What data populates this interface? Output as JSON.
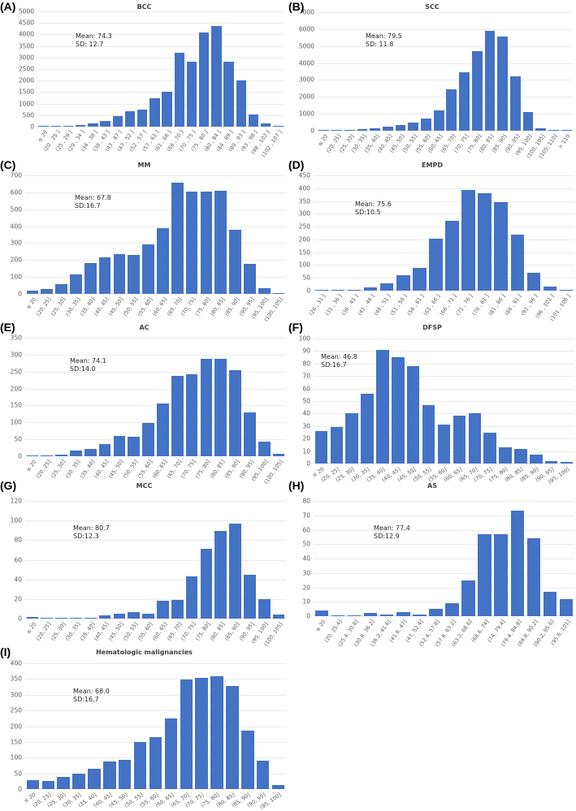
{
  "bar_color": "#4472c4",
  "chart_data": [
    {
      "panel": "(A)",
      "type": "bar",
      "title": "BCC",
      "stats": {
        "mean": "Mean: 74.3",
        "sd": "SD: 12.7"
      },
      "ylim": [
        0,
        5000
      ],
      "yticks": [
        0,
        500,
        1000,
        1500,
        2000,
        2500,
        3000,
        3500,
        4000,
        4500,
        5000
      ],
      "categories": [
        "≤ 20",
        "(20 , 25 ]",
        "(25 , 29 ]",
        "(29 , 34 ]",
        "(34 , 38 ]",
        "(38 , 43 ]",
        "(43 , 47 ]",
        "(47 , 52 ]",
        "(52 , 57 ]",
        "(57 , 61 ]",
        "(61 , 66 ]",
        "(66 , 70 ]",
        "(70 , 75 ]",
        "(75 , 80 ]",
        "(80 , 84 ]",
        "(84 , 89 ]",
        "(89 , 93 ]",
        "(93 , 98 ]",
        "(98 , 102 ]",
        "(102 , 107 ]"
      ],
      "values": [
        5,
        10,
        40,
        60,
        150,
        230,
        460,
        680,
        740,
        1240,
        1520,
        3210,
        2830,
        4100,
        4350,
        2800,
        1990,
        530,
        140,
        0
      ],
      "xlabel": "",
      "ylabel": "",
      "grid": true
    },
    {
      "panel": "(B)",
      "type": "bar",
      "title": "SCC",
      "stats": {
        "mean": "Mean: 79.5",
        "sd": "SD: 11.8"
      },
      "ylim": [
        0,
        7000
      ],
      "yticks": [
        0,
        1000,
        2000,
        3000,
        4000,
        5000,
        6000,
        7000
      ],
      "categories": [
        "≤ 20",
        "(20, 25]",
        "(25, 30]",
        "(30, 35]",
        "(35, 40]",
        "(40, 45]",
        "(45, 50]",
        "(50, 55]",
        "(55, 60]",
        "(60, 65]",
        "(65, 70]",
        "(70, 75]",
        "(75, 80]",
        "(80, 85]",
        "(85, 90]",
        "(90, 95]",
        "(95, 100]",
        "(100, 105]",
        "(105, 110]",
        "> 110"
      ],
      "values": [
        5,
        15,
        40,
        80,
        130,
        230,
        340,
        460,
        700,
        1220,
        2450,
        3450,
        4700,
        5900,
        5550,
        3200,
        1080,
        160,
        5,
        0
      ],
      "xlabel": "",
      "ylabel": "",
      "grid": true
    },
    {
      "panel": "(C)",
      "type": "bar",
      "title": "MM",
      "stats": {
        "mean": "Mean: 67.8",
        "sd": "SD:16.7"
      },
      "ylim": [
        0,
        700
      ],
      "yticks": [
        0,
        100,
        200,
        300,
        400,
        500,
        600,
        700
      ],
      "categories": [
        "≤ 20",
        "(20, 25]",
        "(25, 30]",
        "(30, 35]",
        "(35, 40]",
        "(40, 45]",
        "(45, 50]",
        "(50, 55]",
        "(55, 60]",
        "(60, 65]",
        "(65, 70]",
        "(70, 75]",
        "(75, 80]",
        "(80, 85]",
        "(85, 90]",
        "(90, 95]",
        "(95, 100]",
        "(100, 105]"
      ],
      "values": [
        17,
        28,
        57,
        115,
        180,
        218,
        237,
        228,
        292,
        390,
        655,
        604,
        605,
        610,
        380,
        177,
        35,
        5
      ],
      "xlabel": "",
      "ylabel": "",
      "grid": true
    },
    {
      "panel": "(D)",
      "type": "bar",
      "title": "EMPD",
      "stats": {
        "mean": "Mean: 75.6",
        "sd": "SD:10.5"
      },
      "ylim": [
        0,
        450
      ],
      "yticks": [
        0,
        50,
        100,
        150,
        200,
        250,
        300,
        350,
        400,
        450
      ],
      "categories": [
        "(26 , 31 ]",
        "(31 , 36 ]",
        "(36 , 41 ]",
        "(41 , 46 ]",
        "(46 , 51 ]",
        "(51 , 56 ]",
        "(56 , 61 ]",
        "(61 , 66 ]",
        "(66 , 71 ]",
        "(71 , 76 ]",
        "(76 , 81 ]",
        "(81 , 86 ]",
        "(86 , 91 ]",
        "(91 , 96 ]",
        "(96 , 101 ]",
        "(101 , 106 ]"
      ],
      "values": [
        1,
        2,
        2,
        12,
        27,
        59,
        90,
        202,
        273,
        393,
        381,
        347,
        219,
        71,
        17,
        2
      ],
      "xlabel": "",
      "ylabel": "",
      "grid": true
    },
    {
      "panel": "(E)",
      "type": "bar",
      "title": "AC",
      "stats": {
        "mean": "Mean: 74.1",
        "sd": "SD:14.0"
      },
      "ylim": [
        0,
        350
      ],
      "yticks": [
        0,
        50,
        100,
        150,
        200,
        250,
        300,
        350
      ],
      "categories": [
        "≤ 20",
        "(20, 25]",
        "(25, 30]",
        "(30, 35]",
        "(35, 40]",
        "(40, 45]",
        "(45, 50]",
        "(50, 55]",
        "(55, 60]",
        "(60, 65]",
        "(65, 70]",
        "(70, 75]",
        "(75, 80]",
        "(80, 85]",
        "(85, 90]",
        "(90, 95]",
        "(95, 100]",
        "(100, 105]"
      ],
      "values": [
        1,
        1,
        4,
        18,
        22,
        35,
        60,
        57,
        99,
        157,
        238,
        241,
        287,
        287,
        253,
        129,
        44,
        8
      ],
      "xlabel": "",
      "ylabel": "",
      "grid": true
    },
    {
      "panel": "(F)",
      "type": "bar",
      "title": "DFSP",
      "stats": {
        "mean": "Mean: 46.8",
        "sd": "SD:16.7"
      },
      "ylim": [
        0,
        100
      ],
      "yticks": [
        0,
        10,
        20,
        30,
        40,
        50,
        60,
        70,
        80,
        90,
        100
      ],
      "categories": [
        "≤ 20",
        "(20, 25]",
        "(25, 30]",
        "(30, 35]",
        "(35, 40]",
        "(40, 45]",
        "(45, 50]",
        "(50, 55]",
        "(55, 60]",
        "(60, 65]",
        "(65, 70]",
        "(70, 75]",
        "(75, 80]",
        "(80, 85]",
        "(85, 90]",
        "(90, 95]",
        "(95, 100]"
      ],
      "values": [
        26,
        29,
        40,
        56,
        91,
        85,
        78,
        47,
        31,
        38,
        40,
        25,
        13,
        12,
        7,
        2,
        1
      ],
      "xlabel": "",
      "ylabel": "",
      "grid": true
    },
    {
      "panel": "(G)",
      "type": "bar",
      "title": "MCC",
      "stats": {
        "mean": "Mean: 80.7",
        "sd": "SD:12.3"
      },
      "ylim": [
        0,
        120
      ],
      "yticks": [
        0,
        20,
        40,
        60,
        80,
        100,
        120
      ],
      "categories": [
        "≤ 20",
        "(20, 25]",
        "(25, 30]",
        "(30, 35]",
        "(35, 40]",
        "(40, 45]",
        "(45, 50]",
        "(50, 55]",
        "(55, 60]",
        "(60, 65]",
        "(65, 70]",
        "(70, 75]",
        "(75, 80]",
        "(80, 85]",
        "(85, 90]",
        "(90, 95]",
        "(95, 100]",
        "(100, 105]"
      ],
      "values": [
        2,
        1,
        0,
        1,
        0,
        3,
        5,
        7,
        5,
        18,
        19,
        43,
        71,
        89,
        97,
        45,
        20,
        4
      ],
      "xlabel": "",
      "ylabel": "",
      "grid": true
    },
    {
      "panel": "(H)",
      "type": "bar",
      "title": "AS",
      "stats": {
        "mean": "Mean: 77.4",
        "sd": "SD:12.9"
      },
      "ylim": [
        0,
        80
      ],
      "yticks": [
        0,
        10,
        20,
        30,
        40,
        50,
        60,
        70,
        80
      ],
      "categories": [
        "≤ 20",
        "(20, 25.4]",
        "(25.4, 30.8]",
        "(30.8, 36.2]",
        "(36.2, 41.6]",
        "(41.6, 47]",
        "(47, 52.4]",
        "(52.4, 57.8]",
        "(57.8, 63.2]",
        "(63.2, 68.6]",
        "(68.6, 74]",
        "(74, 79.4]",
        "(79.4, 84.8]",
        "(84.8, 90.2]",
        "(90.2, 95.6]",
        "(95.6, 101]"
      ],
      "values": [
        4,
        0,
        0,
        2,
        1,
        3,
        1,
        5,
        9,
        25,
        57,
        57,
        73,
        54,
        17,
        12
      ],
      "xlabel": "",
      "ylabel": "",
      "grid": true
    },
    {
      "panel": "(I)",
      "type": "bar",
      "title": "Hematologic malignancies",
      "stats": {
        "mean": "Mean: 68.0",
        "sd": "SD:16.7"
      },
      "ylim": [
        0,
        400
      ],
      "yticks": [
        0,
        50,
        100,
        150,
        200,
        250,
        300,
        350,
        400
      ],
      "categories": [
        "≤ 20",
        "(20, 25]",
        "(25, 30]",
        "(30, 35]",
        "(35, 40]",
        "(40, 45]",
        "(45, 50]",
        "(50, 55]",
        "(55, 60]",
        "(60, 65]",
        "(65, 70]",
        "(70, 75]",
        "(75, 80]",
        "(80, 85]",
        "(85, 90]",
        "(90, 95]",
        "(95, 100]"
      ],
      "values": [
        28,
        25,
        40,
        48,
        64,
        87,
        93,
        149,
        164,
        224,
        348,
        354,
        360,
        329,
        187,
        90,
        14
      ],
      "xlabel": "",
      "ylabel": "",
      "grid": true
    }
  ]
}
